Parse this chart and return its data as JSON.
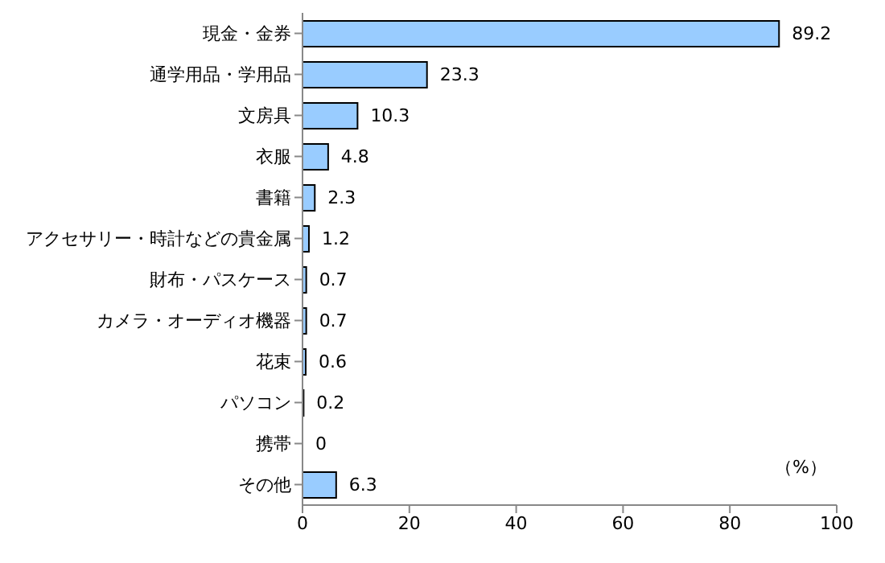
{
  "chart_data": {
    "type": "bar",
    "orientation": "horizontal",
    "categories": [
      "現金・金券",
      "通学用品・学用品",
      "文房具",
      "衣服",
      "書籍",
      "アクセサリー・時計などの貴金属",
      "財布・パスケース",
      "カメラ・オーディオ機器",
      "花束",
      "パソコン",
      "携帯",
      "その他"
    ],
    "values": [
      89.2,
      23.3,
      10.3,
      4.8,
      2.3,
      1.2,
      0.7,
      0.7,
      0.6,
      0.2,
      0,
      6.3
    ],
    "color": "#99ccff",
    "xlim": [
      0,
      100
    ],
    "xticks": [
      0,
      20,
      40,
      60,
      80,
      100
    ],
    "data_labels": true,
    "grid": false,
    "annotations": [
      "（%）"
    ]
  }
}
